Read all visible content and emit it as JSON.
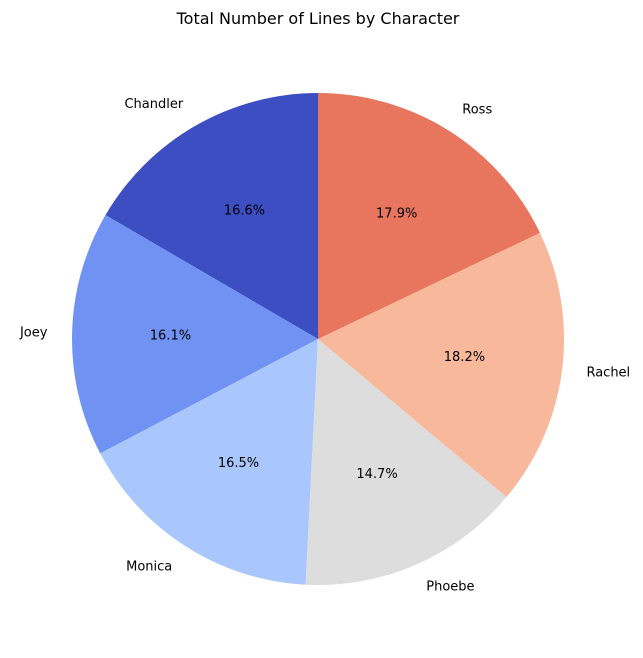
{
  "chart_data": {
    "type": "pie",
    "title": "Total Number of Lines by Character",
    "categories": [
      "Chandler",
      "Joey",
      "Monica",
      "Phoebe",
      "Rachel",
      "Ross"
    ],
    "values": [
      16.6,
      16.1,
      16.5,
      14.7,
      18.2,
      17.9
    ],
    "value_labels": [
      "16.6%",
      "16.1%",
      "16.5%",
      "14.7%",
      "18.2%",
      "17.9%"
    ],
    "colors": [
      "#3d4ec2",
      "#7093f3",
      "#aac7fd",
      "#dddddd",
      "#f7b89c",
      "#e8765e"
    ],
    "start_angle_deg": 90,
    "direction": "counterclockwise",
    "legend": "none"
  }
}
